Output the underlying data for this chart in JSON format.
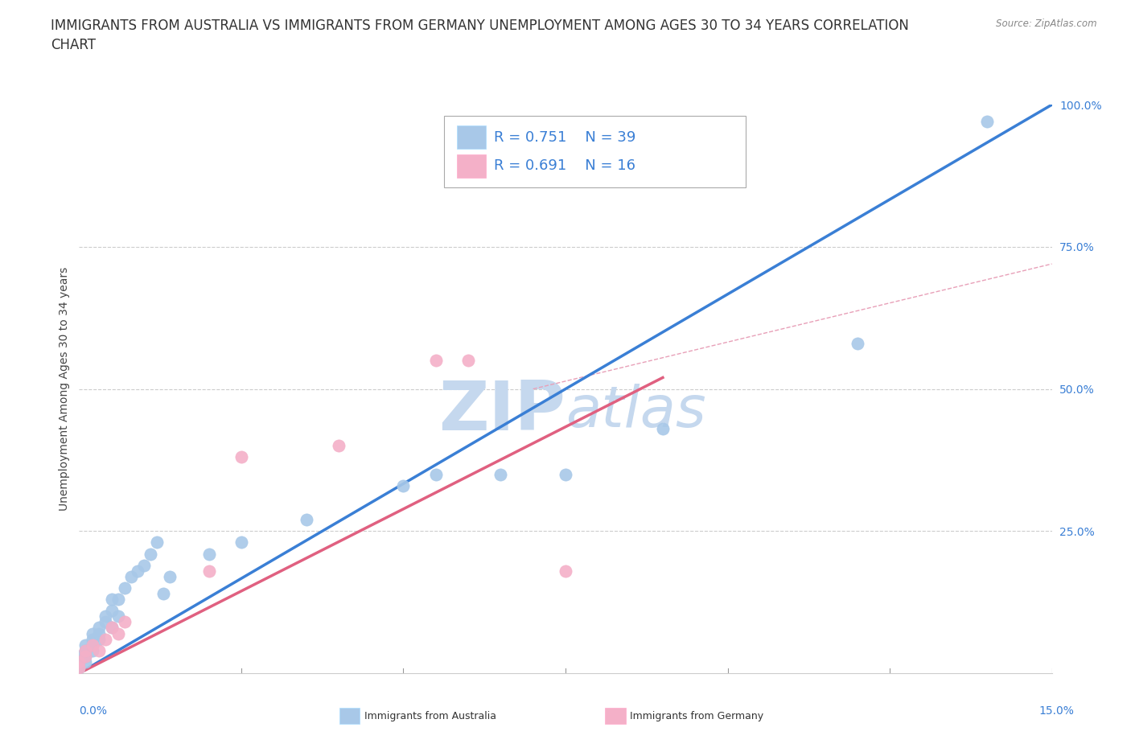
{
  "title": "IMMIGRANTS FROM AUSTRALIA VS IMMIGRANTS FROM GERMANY UNEMPLOYMENT AMONG AGES 30 TO 34 YEARS CORRELATION\nCHART",
  "source": "Source: ZipAtlas.com",
  "xlabel_bottom_left": "0.0%",
  "xlabel_bottom_right": "15.0%",
  "ylabel": "Unemployment Among Ages 30 to 34 years",
  "x_min": 0.0,
  "x_max": 0.15,
  "y_min": 0.0,
  "y_max": 1.0,
  "yticks": [
    0.0,
    0.25,
    0.5,
    0.75,
    1.0
  ],
  "ytick_labels": [
    "",
    "25.0%",
    "50.0%",
    "75.0%",
    "100.0%"
  ],
  "australia_color": "#a8c8e8",
  "germany_color": "#f4b0c8",
  "australia_line_color": "#3a7fd5",
  "germany_line_color": "#e06080",
  "reference_line_color": "#e8a0b8",
  "legend_R_australia": "R = 0.751",
  "legend_N_australia": "N = 39",
  "legend_R_germany": "R = 0.691",
  "legend_N_germany": "N = 16",
  "australia_scatter_x": [
    0.0,
    0.0,
    0.0,
    0.001,
    0.001,
    0.001,
    0.001,
    0.002,
    0.002,
    0.002,
    0.002,
    0.003,
    0.003,
    0.003,
    0.004,
    0.004,
    0.005,
    0.005,
    0.005,
    0.006,
    0.006,
    0.007,
    0.008,
    0.009,
    0.01,
    0.011,
    0.012,
    0.013,
    0.014,
    0.02,
    0.025,
    0.035,
    0.05,
    0.055,
    0.065,
    0.075,
    0.09,
    0.12,
    0.14
  ],
  "australia_scatter_y": [
    0.01,
    0.02,
    0.03,
    0.02,
    0.03,
    0.04,
    0.05,
    0.04,
    0.05,
    0.06,
    0.07,
    0.06,
    0.07,
    0.08,
    0.09,
    0.1,
    0.08,
    0.11,
    0.13,
    0.1,
    0.13,
    0.15,
    0.17,
    0.18,
    0.19,
    0.21,
    0.23,
    0.14,
    0.17,
    0.21,
    0.23,
    0.27,
    0.33,
    0.35,
    0.35,
    0.35,
    0.43,
    0.58,
    0.97
  ],
  "germany_scatter_x": [
    0.0,
    0.0,
    0.001,
    0.001,
    0.002,
    0.003,
    0.004,
    0.005,
    0.006,
    0.007,
    0.02,
    0.025,
    0.04,
    0.055,
    0.06,
    0.075
  ],
  "germany_scatter_y": [
    0.01,
    0.02,
    0.03,
    0.04,
    0.05,
    0.04,
    0.06,
    0.08,
    0.07,
    0.09,
    0.18,
    0.38,
    0.4,
    0.55,
    0.55,
    0.18
  ],
  "australia_line_x": [
    0.0,
    0.15
  ],
  "australia_line_y": [
    0.0,
    1.0
  ],
  "germany_line_x": [
    0.0,
    0.09
  ],
  "germany_line_y": [
    0.0,
    0.52
  ],
  "ref_line_x": [
    0.07,
    0.15
  ],
  "ref_line_y": [
    0.5,
    0.72
  ],
  "watermark_zip": "ZIP",
  "watermark_atlas": "atlas",
  "watermark_color": "#c5d8ee",
  "title_fontsize": 12,
  "axis_label_fontsize": 10,
  "tick_fontsize": 10,
  "legend_fontsize": 13
}
